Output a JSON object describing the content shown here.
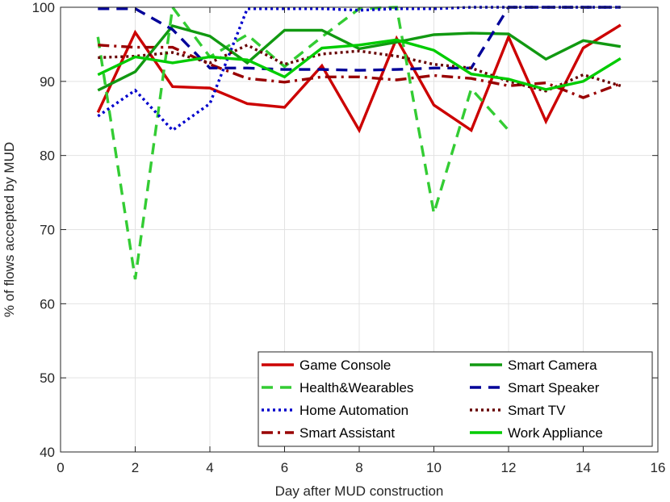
{
  "chart_data": {
    "type": "line",
    "title": "",
    "xlabel": "Day after MUD construction",
    "ylabel": "% of flows accepted by MUD",
    "xlim": [
      0,
      16
    ],
    "ylim": [
      40,
      100
    ],
    "xticks": [
      0,
      2,
      4,
      6,
      8,
      10,
      12,
      14,
      16
    ],
    "yticks": [
      40,
      50,
      60,
      70,
      80,
      90,
      100
    ],
    "grid": true,
    "legend_position": "bottom-right",
    "legend_columns": 2,
    "x": [
      1,
      2,
      3,
      4,
      5,
      6,
      7,
      8,
      9,
      10,
      11,
      12,
      13,
      14,
      15
    ],
    "series": [
      {
        "name": "Game Console",
        "color": "#cc0000",
        "dash": "solid",
        "values": [
          85.8,
          96.6,
          89.3,
          89.1,
          87.0,
          86.5,
          92.1,
          83.4,
          95.8,
          86.8,
          83.4,
          96.0,
          84.6,
          94.5,
          97.6
        ]
      },
      {
        "name": "Health&Wearables",
        "color": "#33cc33",
        "dash": "dashed",
        "values": [
          96.0,
          63.3,
          100.0,
          93.3,
          96.3,
          92.0,
          96.0,
          99.8,
          100.0,
          72.2,
          89.0,
          83.4,
          null,
          null,
          null
        ]
      },
      {
        "name": "Home Automation",
        "color": "#0000cc",
        "dash": "dotted",
        "values": [
          85.3,
          88.8,
          83.4,
          87.0,
          99.8,
          99.8,
          99.8,
          99.6,
          99.8,
          99.8,
          100.0,
          100.0,
          100.0,
          100.0,
          100.0
        ]
      },
      {
        "name": "Smart Assistant",
        "color": "#990000",
        "dash": "dashdot",
        "values": [
          94.9,
          94.6,
          94.6,
          92.3,
          90.4,
          89.9,
          90.6,
          90.6,
          90.2,
          90.8,
          90.4,
          89.4,
          89.8,
          87.8,
          89.7
        ]
      },
      {
        "name": "Smart Camera",
        "color": "#119911",
        "dash": "solid",
        "values": [
          88.8,
          91.3,
          97.5,
          96.1,
          92.5,
          96.9,
          96.9,
          94.4,
          95.3,
          96.3,
          96.5,
          96.4,
          93.0,
          95.5,
          94.7
        ]
      },
      {
        "name": "Smart Speaker",
        "color": "#000099",
        "dash": "dashed",
        "values": [
          99.8,
          99.8,
          97.0,
          91.8,
          91.8,
          91.6,
          91.6,
          91.5,
          91.6,
          91.8,
          91.8,
          100.0,
          100.0,
          100.0,
          100.0
        ]
      },
      {
        "name": "Smart TV",
        "color": "#660000",
        "dash": "dotted",
        "values": [
          93.2,
          93.4,
          93.9,
          92.5,
          94.9,
          92.3,
          93.7,
          94.1,
          93.4,
          92.3,
          91.8,
          90.0,
          88.7,
          90.9,
          89.4
        ]
      },
      {
        "name": "Work Appliance",
        "color": "#00cc00",
        "dash": "solid",
        "values": [
          90.9,
          93.3,
          92.5,
          93.3,
          92.9,
          90.6,
          94.5,
          94.9,
          95.6,
          94.2,
          91.0,
          90.3,
          88.9,
          90.0,
          93.1
        ]
      }
    ]
  }
}
